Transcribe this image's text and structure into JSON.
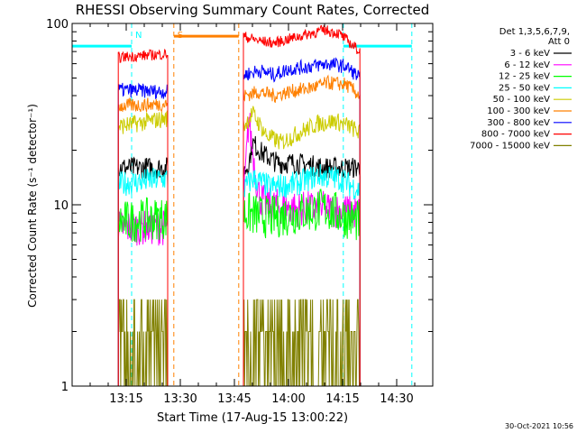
{
  "chart_data": {
    "type": "line",
    "title": "RHESSI Observing Summary Count Rates, Corrected",
    "xlabel": "Start Time (17-Aug-15 13:00:22)",
    "ylabel": "Corrected Count Rate (s⁻¹ detector⁻¹)",
    "x_unit": "minutes after 13:00",
    "xlim": [
      0,
      100
    ],
    "ylim": [
      1,
      100
    ],
    "y_scale": "log",
    "x_ticks": [
      {
        "label": "13:15",
        "value": 15
      },
      {
        "label": "13:30",
        "value": 30
      },
      {
        "label": "13:45",
        "value": 45
      },
      {
        "label": "14:00",
        "value": 60
      },
      {
        "label": "14:15",
        "value": 75
      },
      {
        "label": "14:30",
        "value": 90
      }
    ],
    "y_ticks": [
      {
        "label": "1",
        "value": 1
      },
      {
        "label": "10",
        "value": 10
      },
      {
        "label": "100",
        "value": 100
      }
    ],
    "legend": {
      "position": "right",
      "header": [
        "Det 1,3,5,6,7,9,",
        "Att 0"
      ]
    },
    "gaps": [
      [
        -10,
        12.8
      ],
      [
        26.5,
        47.5
      ],
      [
        79.8,
        110
      ]
    ],
    "series": [
      {
        "name": "3 - 6 keV",
        "color": "#000000",
        "points": [
          [
            12.8,
            16
          ],
          [
            26.5,
            16
          ],
          [
            47.5,
            15
          ],
          [
            49,
            17
          ],
          [
            50,
            22
          ],
          [
            51,
            21
          ],
          [
            53,
            19
          ],
          [
            55,
            18
          ],
          [
            57,
            17
          ],
          [
            62,
            17
          ],
          [
            70,
            16
          ],
          [
            79.8,
            16
          ]
        ]
      },
      {
        "name": "6 - 12 keV",
        "color": "#ff00ff",
        "points": [
          [
            12.8,
            7.5
          ],
          [
            26.5,
            7.5
          ],
          [
            47.5,
            10
          ],
          [
            49,
            30
          ],
          [
            50,
            20
          ],
          [
            51,
            14
          ],
          [
            52,
            11
          ],
          [
            54,
            10
          ],
          [
            62,
            9.5
          ],
          [
            70,
            9.5
          ],
          [
            79.8,
            9
          ]
        ]
      },
      {
        "name": "12 - 25 keV",
        "color": "#00ff00",
        "points": [
          [
            12.8,
            8
          ],
          [
            26.5,
            8.5
          ],
          [
            47.5,
            9
          ],
          [
            55,
            8.5
          ],
          [
            63,
            9
          ],
          [
            70,
            9.5
          ],
          [
            79.8,
            8
          ]
        ]
      },
      {
        "name": "25 - 50 keV",
        "color": "#00ffff",
        "points": [
          [
            12.8,
            13
          ],
          [
            26.5,
            14
          ],
          [
            47.5,
            12
          ],
          [
            50,
            14
          ],
          [
            55,
            12.5
          ],
          [
            62,
            13
          ],
          [
            68,
            14.5
          ],
          [
            74,
            14
          ],
          [
            79.8,
            12
          ]
        ]
      },
      {
        "name": "50 - 100 keV",
        "color": "#cccc00",
        "points": [
          [
            12.8,
            27
          ],
          [
            26.5,
            30
          ],
          [
            47.5,
            27
          ],
          [
            50,
            32
          ],
          [
            54,
            24
          ],
          [
            58,
            22
          ],
          [
            63,
            25
          ],
          [
            68,
            28
          ],
          [
            73,
            29
          ],
          [
            77,
            27
          ],
          [
            79.8,
            25
          ]
        ]
      },
      {
        "name": "100 - 300 keV",
        "color": "#ff8000",
        "points": [
          [
            12.8,
            35
          ],
          [
            26.5,
            36
          ],
          [
            47.5,
            40
          ],
          [
            52,
            42
          ],
          [
            56,
            40
          ],
          [
            60,
            42
          ],
          [
            66,
            44
          ],
          [
            71,
            47
          ],
          [
            76,
            46
          ],
          [
            79.8,
            40
          ]
        ]
      },
      {
        "name": "300 - 800 keV",
        "color": "#0000ff",
        "points": [
          [
            12.8,
            43
          ],
          [
            26.5,
            42
          ],
          [
            47.5,
            52
          ],
          [
            52,
            55
          ],
          [
            56,
            52
          ],
          [
            60,
            56
          ],
          [
            66,
            58
          ],
          [
            71,
            60
          ],
          [
            76,
            58
          ],
          [
            79.8,
            50
          ]
        ]
      },
      {
        "name": "800 - 7000 keV",
        "color": "#ff0000",
        "points": [
          [
            12.8,
            65
          ],
          [
            26.5,
            68
          ],
          [
            47.5,
            85
          ],
          [
            52,
            80
          ],
          [
            56,
            78
          ],
          [
            60,
            82
          ],
          [
            66,
            88
          ],
          [
            70,
            92
          ],
          [
            74,
            88
          ],
          [
            79.8,
            70
          ]
        ]
      },
      {
        "name": "7000 - 15000 keV",
        "color": "#808000",
        "points": [
          [
            12.8,
            2
          ],
          [
            26.5,
            2
          ],
          [
            47.5,
            1.5
          ],
          [
            60,
            1.5
          ],
          [
            70,
            2.5
          ],
          [
            75,
            2.5
          ],
          [
            79.8,
            2
          ]
        ]
      }
    ],
    "annotations": [
      {
        "label": "N",
        "x": 16.5,
        "color": "#00ffff",
        "type": "night"
      },
      {
        "label": "S",
        "x": 28.2,
        "color": "#ff8000",
        "type": "saa"
      }
    ],
    "markers": [
      {
        "type": "night-start",
        "x": 16.5,
        "color": "#00ffff"
      },
      {
        "type": "night-end",
        "x": 75.2,
        "color": "#00ffff"
      },
      {
        "type": "night-start",
        "x": 94.2,
        "color": "#00ffff"
      },
      {
        "type": "saa-start",
        "x": 28.2,
        "color": "#ff8000"
      },
      {
        "type": "saa-end",
        "x": 46.2,
        "color": "#ff8000"
      }
    ],
    "flags": [
      {
        "type": "night",
        "from": 0,
        "to": 16.5,
        "y": 75,
        "color": "#00ffff"
      },
      {
        "type": "night",
        "from": 75.2,
        "to": 94.2,
        "y": 75,
        "color": "#00ffff"
      },
      {
        "type": "saa",
        "from": 28.2,
        "to": 46.2,
        "y": 85,
        "color": "#ff8000"
      }
    ],
    "timestamp": "30-Oct-2021 10:56"
  }
}
